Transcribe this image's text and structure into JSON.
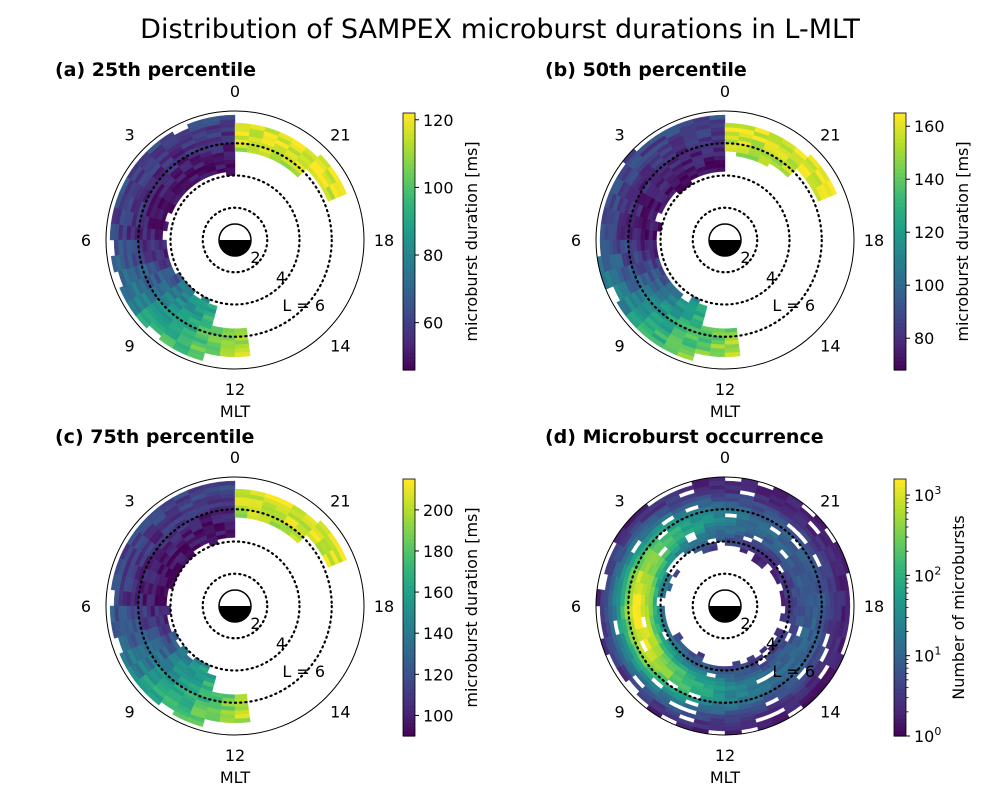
{
  "title": "Distribution of SAMPEX microburst durations in L-MLT",
  "colors": {
    "viridis": [
      "#440154",
      "#482878",
      "#3e4989",
      "#31688e",
      "#26828e",
      "#1f9e89",
      "#35b779",
      "#6ece58",
      "#b5de2b",
      "#fde725"
    ]
  },
  "chart_data": [
    {
      "type": "heatmap",
      "title": "(a) 25th percentile",
      "projection": "polar (MLT azimuth, L radial)",
      "theta_ticks": [
        "0",
        "3",
        "6",
        "9",
        "12",
        "14",
        "18",
        "21"
      ],
      "theta_axis_label": "MLT",
      "r_rings": [
        {
          "value": 2,
          "label": "2"
        },
        {
          "value": 4,
          "label": "4"
        },
        {
          "value": 6,
          "label": "L = 6"
        }
      ],
      "colorbar": {
        "label": "microburst duration [ms]",
        "scale": "linear",
        "range": [
          46,
          122
        ],
        "ticks": [
          "60",
          "80",
          "100",
          "120"
        ],
        "tick_values": [
          60,
          80,
          100,
          120
        ]
      },
      "l_range": [
        4,
        8
      ],
      "mlt_coverage": [
        [
          0,
          12.75
        ],
        [
          19.5,
          24
        ]
      ],
      "high_values_near": "MLT 10-15",
      "value_range": [
        46,
        122
      ]
    },
    {
      "type": "heatmap",
      "title": "(b) 50th percentile",
      "projection": "polar (MLT azimuth, L radial)",
      "theta_ticks": [
        "0",
        "3",
        "6",
        "9",
        "12",
        "14",
        "18",
        "21"
      ],
      "theta_axis_label": "MLT",
      "r_rings": [
        {
          "value": 2,
          "label": "2"
        },
        {
          "value": 4,
          "label": "4"
        },
        {
          "value": 6,
          "label": "L = 6"
        }
      ],
      "colorbar": {
        "label": "microburst duration [ms]",
        "scale": "linear",
        "range": [
          68,
          165
        ],
        "ticks": [
          "80",
          "100",
          "120",
          "140",
          "160"
        ],
        "tick_values": [
          80,
          100,
          120,
          140,
          160
        ]
      },
      "l_range": [
        4,
        8
      ],
      "mlt_coverage": [
        [
          0,
          12.75
        ],
        [
          19.5,
          24
        ]
      ],
      "high_values_near": "MLT 10-15",
      "value_range": [
        68,
        165
      ]
    },
    {
      "type": "heatmap",
      "title": "(c) 75th percentile",
      "projection": "polar (MLT azimuth, L radial)",
      "theta_ticks": [
        "0",
        "3",
        "6",
        "9",
        "12",
        "14",
        "18",
        "21"
      ],
      "theta_axis_label": "MLT",
      "r_rings": [
        {
          "value": 2,
          "label": "2"
        },
        {
          "value": 4,
          "label": "4"
        },
        {
          "value": 6,
          "label": "L = 6"
        }
      ],
      "colorbar": {
        "label": "microburst duration [ms]",
        "scale": "linear",
        "range": [
          90,
          215
        ],
        "ticks": [
          "100",
          "120",
          "140",
          "160",
          "180",
          "200"
        ],
        "tick_values": [
          100,
          120,
          140,
          160,
          180,
          200
        ]
      },
      "l_range": [
        4,
        8
      ],
      "mlt_coverage": [
        [
          0,
          12.75
        ],
        [
          19.5,
          24
        ]
      ],
      "high_values_near": "MLT 10-15",
      "value_range": [
        90,
        215
      ]
    },
    {
      "type": "heatmap",
      "title": "(d) Microburst occurrence",
      "projection": "polar (MLT azimuth, L radial)",
      "theta_ticks": [
        "0",
        "3",
        "6",
        "9",
        "12",
        "14",
        "18",
        "21"
      ],
      "theta_axis_label": "MLT",
      "r_rings": [
        {
          "value": 2,
          "label": "2"
        },
        {
          "value": 4,
          "label": "4"
        },
        {
          "value": 6,
          "label": "L = 6"
        }
      ],
      "colorbar": {
        "label": "Number of microbursts",
        "scale": "log",
        "range": [
          0,
          3.2
        ],
        "ticks": [
          "10",
          "10",
          "10",
          "10"
        ],
        "tick_exponents": [
          "0",
          "1",
          "2",
          "3"
        ],
        "tick_values": [
          0,
          1,
          2,
          3
        ]
      },
      "l_range": [
        3,
        8
      ],
      "mlt_coverage": [
        [
          0,
          24
        ]
      ],
      "peak_region": "L 4.5-6.5, MLT 4-9 (~10^3)",
      "value_range": [
        0,
        3.2
      ]
    }
  ]
}
